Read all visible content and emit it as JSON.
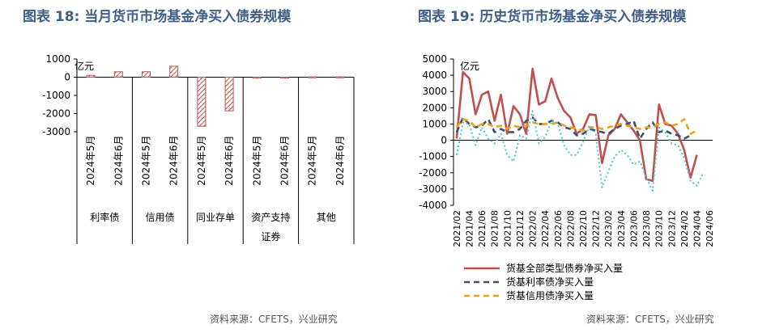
{
  "titles": {
    "left": "图表 18: 当月货币市场基金净买入债券规模",
    "right": "图表 19: 历史货币市场基金净买入债券规模"
  },
  "sources": {
    "left": "资料来源：CFETS，兴业研究",
    "right": "资料来源：CFETS，兴业研究"
  },
  "chart_data": [
    {
      "type": "bar",
      "unit_label": "亿元",
      "ylim": [
        -3000,
        1000
      ],
      "yticks": [
        1000,
        0,
        -1000,
        -2000,
        -3000
      ],
      "groups": [
        {
          "label": "利率债",
          "categories": [
            "2024年5月",
            "2024年6月"
          ],
          "values": [
            100,
            300
          ]
        },
        {
          "label": "信用债",
          "categories": [
            "2024年5月",
            "2024年6月"
          ],
          "values": [
            300,
            600
          ]
        },
        {
          "label": "同业存单",
          "categories": [
            "2024年5月",
            "2024年6月"
          ],
          "values": [
            -2700,
            -1850
          ]
        },
        {
          "label": "资产支持证券",
          "categories": [
            "2024年5月",
            "2024年6月"
          ],
          "values": [
            0,
            0
          ]
        },
        {
          "label": "其他",
          "categories": [
            "2024年5月",
            "2024年6月"
          ],
          "values": [
            20,
            20
          ]
        }
      ],
      "colors": {
        "bar_stroke": "#c0504d",
        "hatch": "#c0504d"
      }
    },
    {
      "type": "line",
      "unit_label": "亿元",
      "ylim": [
        -4000,
        5000
      ],
      "yticks": [
        5000,
        4000,
        3000,
        2000,
        1000,
        0,
        -1000,
        -2000,
        -3000,
        -4000
      ],
      "x": [
        "2021/02",
        "2021/03",
        "2021/04",
        "2021/05",
        "2021/06",
        "2021/07",
        "2021/08",
        "2021/09",
        "2021/10",
        "2021/11",
        "2021/12",
        "2022/01",
        "2022/02",
        "2022/03",
        "2022/04",
        "2022/05",
        "2022/06",
        "2022/07",
        "2022/08",
        "2022/09",
        "2022/10",
        "2022/11",
        "2022/12",
        "2023/01",
        "2023/02",
        "2023/03",
        "2023/04",
        "2023/05",
        "2023/06",
        "2023/07",
        "2023/08",
        "2023/09",
        "2023/10",
        "2023/11",
        "2023/12",
        "2024/01",
        "2024/02",
        "2024/03",
        "2024/04",
        "2024/05",
        "2024/06"
      ],
      "x_tick_labels": [
        "2021/02",
        "2021/04",
        "2021/06",
        "2021/08",
        "2021/10",
        "2021/12",
        "2022/02",
        "2022/04",
        "2022/06",
        "2022/08",
        "2022/10",
        "2022/12",
        "2023/02",
        "2023/04",
        "2023/06",
        "2023/08",
        "2023/10",
        "2023/12",
        "2024/02",
        "2024/04",
        "2024/06"
      ],
      "series": [
        {
          "name": "货基全部类型债券净买入量",
          "color": "#c0504d",
          "style": "solid",
          "values": [
            100,
            4200,
            3800,
            1600,
            2800,
            3000,
            1200,
            2800,
            400,
            2100,
            1600,
            400,
            4400,
            2200,
            2400,
            3800,
            2600,
            1800,
            1400,
            400,
            700,
            1600,
            1550,
            -1400,
            300,
            700,
            1600,
            1100,
            600,
            0,
            -2400,
            -2500,
            2200,
            1000,
            900,
            400,
            -600,
            -2300,
            -900,
            null,
            null
          ]
        },
        {
          "name": "货基利率债净买入量",
          "color": "#3f4e6a",
          "style": "dashed",
          "values": [
            500,
            1400,
            1000,
            800,
            900,
            1300,
            500,
            700,
            500,
            500,
            700,
            1200,
            1400,
            1000,
            1000,
            1200,
            1100,
            800,
            700,
            300,
            400,
            700,
            600,
            500,
            400,
            700,
            900,
            1000,
            1200,
            100,
            700,
            1100,
            500,
            600,
            400,
            300,
            100,
            300,
            null,
            null,
            null
          ]
        },
        {
          "name": "货基信用债净买入量",
          "color": "#f0a01e",
          "style": "dashed",
          "values": [
            800,
            1300,
            1200,
            800,
            1000,
            1000,
            800,
            900,
            700,
            900,
            800,
            900,
            1100,
            1000,
            1000,
            1000,
            1100,
            900,
            800,
            700,
            600,
            800,
            800,
            700,
            800,
            900,
            1000,
            900,
            800,
            700,
            800,
            800,
            1000,
            1100,
            900,
            1000,
            1300,
            400,
            600,
            null,
            null
          ]
        },
        {
          "name": "",
          "color": "#48c6d6",
          "style": "dotted",
          "values": [
            -900,
            1100,
            1000,
            -300,
            800,
            100,
            -200,
            400,
            -900,
            -1300,
            300,
            100,
            1800,
            -200,
            200,
            1200,
            1000,
            -300,
            -900,
            -900,
            -100,
            900,
            400,
            -2900,
            -1900,
            -1000,
            -600,
            -900,
            -1500,
            -1300,
            -2300,
            -3100,
            800,
            500,
            -200,
            -300,
            -1100,
            -2500,
            -2800,
            -2000,
            null
          ]
        }
      ]
    }
  ]
}
